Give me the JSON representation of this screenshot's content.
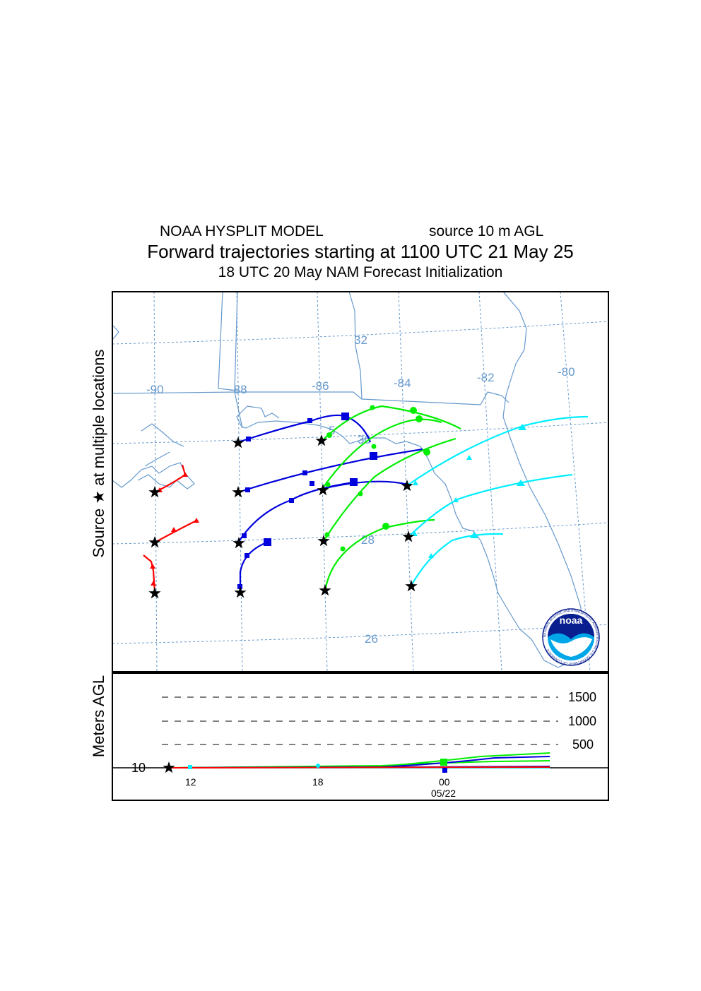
{
  "header": {
    "model": "NOAA HYSPLIT MODEL",
    "source_height": "source 10 m AGL",
    "main_title": "Forward trajectories starting at 1100 UTC 21 May 25",
    "subtitle": "18 UTC 20 May    NAM   Forecast Initialization"
  },
  "axes": {
    "map_ylabel": "Source ★  at multiple locations",
    "height_ylabel": "Meters AGL"
  },
  "map": {
    "longitude_labels": [
      "-90",
      "-88",
      "-86",
      "-84",
      "-82",
      "-80"
    ],
    "latitude_labels": [
      "32",
      "30",
      "28",
      "26"
    ],
    "extra_label": "5"
  },
  "height_panel": {
    "levels": [
      "1500",
      "1000",
      "500"
    ],
    "source_level": "10",
    "time_ticks": [
      "12",
      "18",
      "00"
    ],
    "date_label": "05/22"
  },
  "colors": {
    "red": "#ff0000",
    "blue": "#0000dd",
    "green": "#00ee00",
    "cyan": "#00eeff",
    "map_lines": "#6699cc",
    "noaa_navy": "#0a1f8f",
    "noaa_light": "#00a7e8"
  },
  "logo": {
    "name": "noaa",
    "ring_text": "NATIONAL OCEANIC AND ATMOSPHERIC ADMINISTRATION   U.S. DEPARTMENT OF COMMERCE"
  }
}
